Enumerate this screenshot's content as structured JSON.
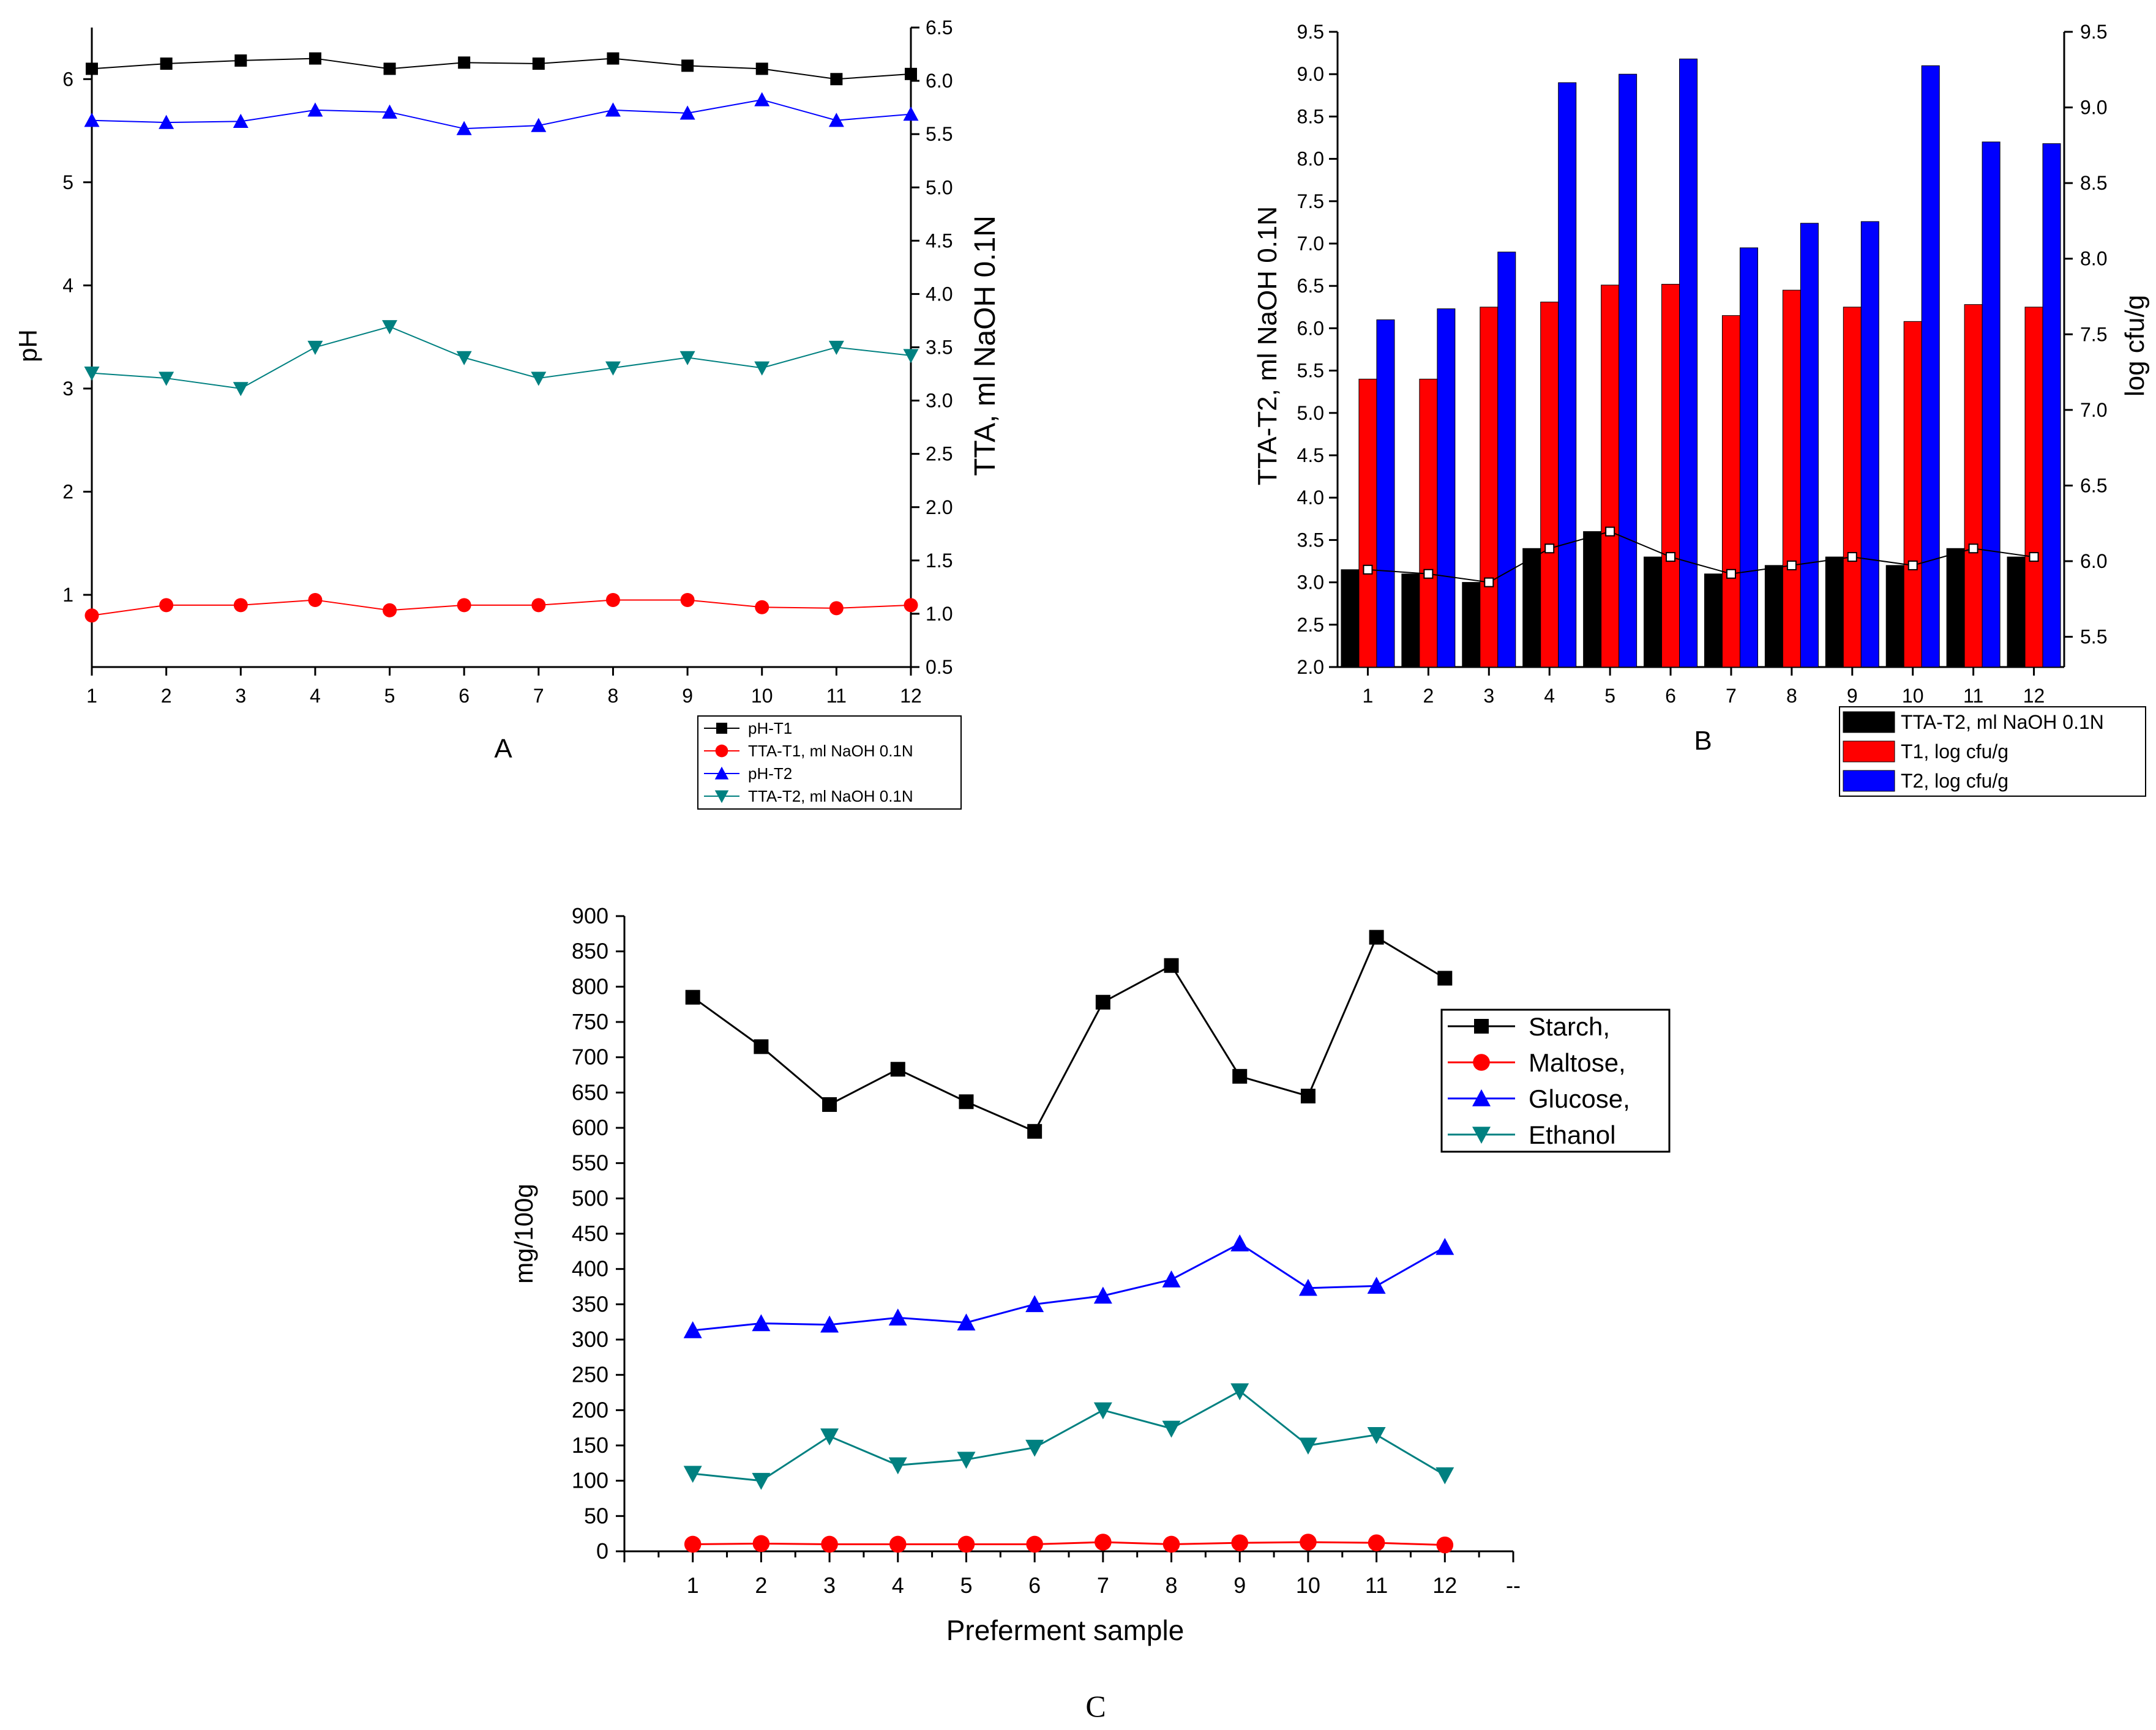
{
  "figure": {
    "panel_c_caption": "C"
  },
  "chart_data": [
    {
      "id": "A",
      "type": "line",
      "title": "A",
      "xlabel": "",
      "ylabel_left": "pH",
      "ylabel_right": "TTA, ml NaOH 0.1N",
      "x": [
        1,
        2,
        3,
        4,
        5,
        6,
        7,
        8,
        9,
        10,
        11,
        12
      ],
      "xlim": [
        1,
        12
      ],
      "ylim_left": [
        0.3,
        6.5
      ],
      "ylim_right": [
        0.5,
        6.5
      ],
      "yticks_left": [
        1,
        2,
        3,
        4,
        5,
        6
      ],
      "yticks_right": [
        0.5,
        1.0,
        1.5,
        2.0,
        2.5,
        3.0,
        3.5,
        4.0,
        4.5,
        5.0,
        5.5,
        6.0,
        6.5
      ],
      "yticks_right_labels": [
        "0.5",
        "1.0",
        "1.5",
        "2.0",
        "2.5",
        "3.0",
        "3.5",
        "4.0",
        "4.5",
        "5.0",
        "5.5",
        "6.0",
        "6.5"
      ],
      "legend_position": "bottom-right",
      "series": [
        {
          "name": "pH-T1",
          "axis": "left",
          "color": "#000000",
          "marker": "square",
          "values": [
            6.1,
            6.15,
            6.18,
            6.2,
            6.1,
            6.16,
            6.15,
            6.2,
            6.13,
            6.1,
            6.0,
            6.05
          ]
        },
        {
          "name": "TTA-T1, ml NaOH 0.1N",
          "axis": "left",
          "color": "#ff0000",
          "marker": "circle",
          "values": [
            0.8,
            0.9,
            0.9,
            0.95,
            0.85,
            0.9,
            0.9,
            0.95,
            0.95,
            0.88,
            0.87,
            0.9
          ]
        },
        {
          "name": "pH-T2",
          "axis": "left",
          "color": "#0000ff",
          "marker": "triangle-up",
          "values": [
            5.6,
            5.58,
            5.59,
            5.7,
            5.68,
            5.52,
            5.55,
            5.7,
            5.67,
            5.8,
            5.6,
            5.66
          ]
        },
        {
          "name": "TTA-T2, ml NaOH 0.1N",
          "axis": "left",
          "color": "#008080",
          "marker": "triangle-down",
          "values": [
            3.15,
            3.1,
            3.0,
            3.4,
            3.6,
            3.3,
            3.1,
            3.2,
            3.3,
            3.2,
            3.4,
            3.32
          ]
        }
      ]
    },
    {
      "id": "B",
      "type": "bar",
      "title": "B",
      "xlabel": "",
      "ylabel_left": "TTA-T2, ml NaOH 0.1N",
      "ylabel_right": "log cfu/g",
      "categories": [
        "1",
        "2",
        "3",
        "4",
        "5",
        "6",
        "7",
        "8",
        "9",
        "10",
        "11",
        "12"
      ],
      "ylim_left": [
        2.0,
        9.5
      ],
      "ylim_right": [
        5.3,
        9.5
      ],
      "yticks_left": [
        "2.0",
        "2.5",
        "3.0",
        "3.5",
        "4.0",
        "4.5",
        "5.0",
        "5.5",
        "6.0",
        "6.5",
        "7.0",
        "7.5",
        "8.0",
        "8.5",
        "9.0",
        "9.5"
      ],
      "yticks_right": [
        "5.5",
        "6.0",
        "6.5",
        "7.0",
        "7.5",
        "8.0",
        "8.5",
        "9.0",
        "9.5"
      ],
      "legend_position": "bottom-right",
      "series": [
        {
          "name": "TTA-T2, ml NaOH 0.1N",
          "axis": "left",
          "color": "#000000",
          "values": [
            3.15,
            3.1,
            3.0,
            3.4,
            3.6,
            3.3,
            3.1,
            3.2,
            3.3,
            3.2,
            3.4,
            3.3
          ]
        },
        {
          "name": "T1, log cfu/g",
          "axis": "left",
          "color": "#ff0000",
          "values": [
            5.4,
            5.4,
            6.25,
            6.31,
            6.51,
            6.52,
            6.15,
            6.45,
            6.25,
            6.08,
            6.28,
            6.25
          ]
        },
        {
          "name": "T2, log cfu/g",
          "axis": "left",
          "color": "#0000ff",
          "values": [
            6.1,
            6.23,
            6.9,
            8.9,
            9.0,
            9.18,
            6.95,
            7.24,
            7.26,
            9.1,
            8.2,
            8.18
          ]
        }
      ],
      "overlay_line": {
        "name": "TTA-T2 trend",
        "color": "#000000",
        "marker": "open-square",
        "values": [
          3.15,
          3.1,
          3.0,
          3.4,
          3.6,
          3.3,
          3.1,
          3.2,
          3.3,
          3.2,
          3.4,
          3.3
        ]
      }
    },
    {
      "id": "C",
      "type": "line",
      "title": "",
      "xlabel": "Preferment sample",
      "ylabel": "mg/100g",
      "x": [
        1,
        2,
        3,
        4,
        5,
        6,
        7,
        8,
        9,
        10,
        11,
        12
      ],
      "xticks": [
        "1",
        "2",
        "3",
        "4",
        "5",
        "6",
        "7",
        "8",
        "9",
        "10",
        "11",
        "12",
        "--"
      ],
      "xlim": [
        0,
        13
      ],
      "ylim": [
        0,
        900
      ],
      "yticks": [
        0,
        50,
        100,
        150,
        200,
        250,
        300,
        350,
        400,
        450,
        500,
        550,
        600,
        650,
        700,
        750,
        800,
        850,
        900
      ],
      "legend_position": "top-right",
      "series": [
        {
          "name": "Starch,",
          "color": "#000000",
          "marker": "square",
          "values": [
            785,
            715,
            633,
            683,
            637,
            595,
            778,
            830,
            673,
            645,
            870,
            812
          ]
        },
        {
          "name": "Maltose,",
          "color": "#ff0000",
          "marker": "circle",
          "values": [
            10,
            11,
            10,
            10,
            10,
            10,
            13,
            10,
            12,
            13,
            12,
            9
          ]
        },
        {
          "name": "Glucose,",
          "color": "#0000ff",
          "marker": "triangle-up",
          "values": [
            313,
            323,
            321,
            331,
            324,
            350,
            362,
            385,
            436,
            373,
            376,
            431
          ]
        },
        {
          "name": "Ethanol",
          "color": "#008080",
          "marker": "triangle-down",
          "values": [
            110,
            100,
            163,
            122,
            130,
            147,
            200,
            174,
            227,
            150,
            165,
            108
          ]
        }
      ]
    }
  ]
}
